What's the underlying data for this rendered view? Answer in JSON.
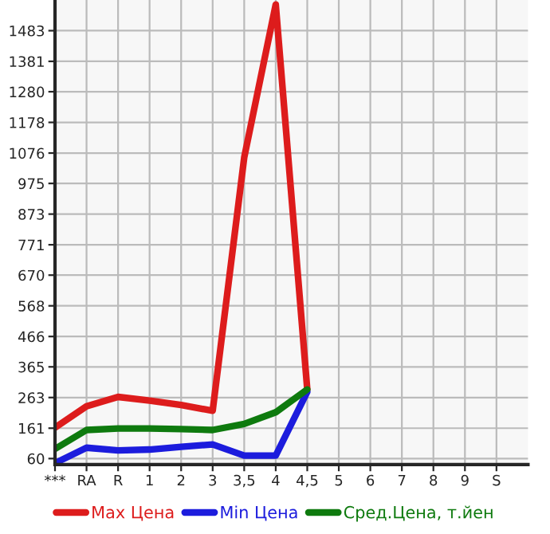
{
  "chart_data": {
    "type": "line",
    "categories": [
      "***",
      "RA",
      "R",
      "1",
      "2",
      "3",
      "3,5",
      "4",
      "4,5",
      "5",
      "6",
      "7",
      "8",
      "9",
      "S"
    ],
    "series": [
      {
        "name": "Max Цена",
        "color": "#dd1c1c",
        "values": [
          163,
          234,
          265,
          253,
          238,
          219,
          1061,
          1570,
          290,
          null,
          null,
          null,
          null,
          null,
          null
        ]
      },
      {
        "name": "Min Цена",
        "color": "#1c1cdd",
        "values": [
          45,
          96,
          87,
          90,
          99,
          107,
          70,
          70,
          282,
          null,
          null,
          null,
          null,
          null,
          null
        ]
      },
      {
        "name": "Сред.Цена, т.йен",
        "color": "#0e7a0e",
        "values": [
          92,
          155,
          160,
          160,
          158,
          155,
          175,
          214,
          290,
          null,
          null,
          null,
          null,
          null,
          null
        ]
      }
    ],
    "ylim": [
      40,
      1585
    ],
    "yticks": [
      60,
      161,
      263,
      365,
      466,
      568,
      670,
      771,
      873,
      975,
      1076,
      1178,
      1280,
      1381,
      1483
    ],
    "grid": true,
    "legend": "bottom",
    "marker": "none",
    "line_style": "solid"
  }
}
